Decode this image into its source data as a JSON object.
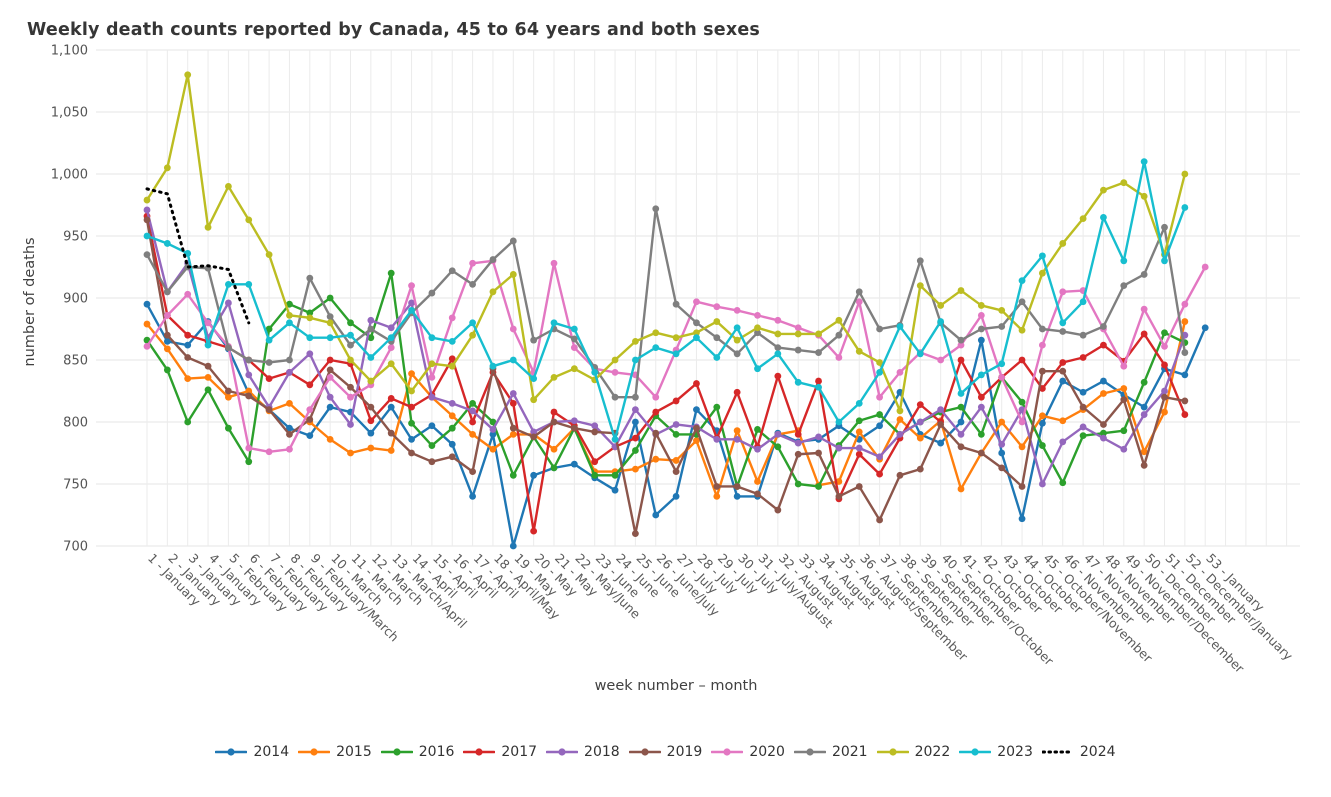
{
  "page": {
    "title": "Weekly death counts reported by Canada, 45 to 64 years and both sexes"
  },
  "chart_data": {
    "type": "line",
    "title": "Weekly death counts reported by Canada, 45 to 64 years and both sexes",
    "xlabel": "week number – month",
    "ylabel": "number of deaths",
    "ylim": [
      700,
      1100
    ],
    "y_ticks": [
      700,
      750,
      800,
      850,
      900,
      950,
      1000,
      1050,
      1100
    ],
    "y_tick_labels": [
      "700",
      "750",
      "800",
      "850",
      "900",
      "950",
      "1,000",
      "1,050",
      "1,100"
    ],
    "grid": true,
    "legend_position": "bottom",
    "categories": [
      "1 - January",
      "2 - January",
      "3 - January",
      "4 - January",
      "5 - February",
      "6 - February",
      "7 - February",
      "8 - February",
      "9 - February/March",
      "10 - March",
      "11 - March",
      "12 - March",
      "13 - March/April",
      "14 - April",
      "15 - April",
      "16 - April",
      "17 - April",
      "18 - April/May",
      "19 - May",
      "20 - May",
      "21 - May",
      "22 - May/June",
      "23 - June",
      "24 - June",
      "25 - June",
      "26 - June/July",
      "27 - July",
      "28 - July",
      "29 - July",
      "30 - July",
      "31 - July/August",
      "32 - August",
      "33 - August",
      "34 - August",
      "35 - August",
      "36 - August/September",
      "37 - September",
      "38 - September",
      "39 - September",
      "40 - September/October",
      "41 - October",
      "42 - October",
      "43 - October",
      "44 - October",
      "45 - October/November",
      "46 - November",
      "47 - November",
      "48 - November",
      "49 - November/December",
      "50 - December",
      "51 - December",
      "52 - December/January",
      "53 - January"
    ],
    "series": [
      {
        "name": "2014",
        "color": "#1f77b4",
        "dash": false,
        "values": [
          895,
          865,
          862,
          881,
          859,
          823,
          810,
          795,
          789,
          812,
          808,
          791,
          812,
          786,
          797,
          782,
          740,
          790,
          700,
          757,
          763,
          766,
          755,
          745,
          800,
          725,
          740,
          810,
          793,
          740,
          740,
          791,
          784,
          786,
          797,
          786,
          797,
          824,
          790,
          783,
          800,
          866,
          775,
          722,
          799,
          833,
          824,
          833,
          822,
          812,
          843,
          838,
          876
        ]
      },
      {
        "name": "2015",
        "color": "#ff7f0e",
        "dash": false,
        "values": [
          879,
          859,
          835,
          836,
          820,
          825,
          809,
          815,
          800,
          786,
          775,
          779,
          777,
          839,
          820,
          805,
          790,
          778,
          790,
          790,
          778,
          795,
          760,
          760,
          762,
          770,
          769,
          785,
          740,
          793,
          752,
          790,
          793,
          749,
          752,
          792,
          770,
          802,
          787,
          801,
          746,
          775,
          800,
          780,
          805,
          801,
          810,
          823,
          827,
          776,
          808,
          881
        ]
      },
      {
        "name": "2016",
        "color": "#2ca02c",
        "dash": false,
        "values": [
          866,
          842,
          800,
          826,
          795,
          768,
          875,
          895,
          888,
          900,
          880,
          868,
          920,
          799,
          781,
          795,
          815,
          800,
          757,
          788,
          763,
          795,
          757,
          757,
          777,
          805,
          790,
          790,
          812,
          748,
          794,
          780,
          750,
          748,
          781,
          801,
          806,
          790,
          800,
          808,
          812,
          790,
          836,
          816,
          781,
          751,
          789,
          791,
          793,
          832,
          872,
          864
        ]
      },
      {
        "name": "2017",
        "color": "#d62728",
        "dash": false,
        "values": [
          966,
          886,
          870,
          865,
          860,
          850,
          835,
          840,
          830,
          850,
          847,
          801,
          819,
          812,
          822,
          851,
          800,
          840,
          815,
          712,
          808,
          797,
          768,
          780,
          787,
          808,
          817,
          831,
          787,
          824,
          780,
          837,
          790,
          833,
          738,
          774,
          758,
          787,
          814,
          800,
          850,
          820,
          836,
          850,
          827,
          848,
          852,
          862,
          849,
          871,
          846,
          806
        ]
      },
      {
        "name": "2018",
        "color": "#9467bd",
        "dash": false,
        "values": [
          971,
          905,
          928,
          868,
          896,
          838,
          812,
          840,
          855,
          820,
          798,
          882,
          876,
          896,
          820,
          815,
          809,
          794,
          823,
          792,
          800,
          801,
          797,
          780,
          810,
          790,
          798,
          796,
          786,
          786,
          778,
          790,
          783,
          788,
          779,
          779,
          772,
          790,
          800,
          810,
          790,
          812,
          782,
          810,
          750,
          784,
          796,
          787,
          778,
          806,
          825,
          870
        ]
      },
      {
        "name": "2019",
        "color": "#8c564b",
        "dash": false,
        "values": [
          963,
          870,
          852,
          845,
          825,
          821,
          810,
          790,
          802,
          842,
          828,
          812,
          791,
          775,
          768,
          772,
          760,
          843,
          795,
          788,
          800,
          795,
          792,
          791,
          710,
          791,
          760,
          795,
          748,
          748,
          742,
          729,
          774,
          775,
          740,
          748,
          721,
          757,
          762,
          798,
          780,
          775,
          763,
          748,
          841,
          841,
          812,
          798,
          818,
          765,
          820,
          817
        ]
      },
      {
        "name": "2020",
        "color": "#e377c2",
        "dash": false,
        "values": [
          861,
          886,
          903,
          880,
          861,
          779,
          776,
          778,
          810,
          836,
          820,
          830,
          860,
          910,
          836,
          884,
          928,
          930,
          875,
          840,
          928,
          860,
          843,
          840,
          838,
          820,
          858,
          897,
          893,
          890,
          886,
          882,
          876,
          870,
          852,
          897,
          820,
          840,
          856,
          850,
          862,
          886,
          836,
          800,
          862,
          905,
          906,
          875,
          845,
          891,
          861,
          895,
          925
        ]
      },
      {
        "name": "2021",
        "color": "#7f7f7f",
        "dash": false,
        "values": [
          935,
          905,
          925,
          924,
          860,
          850,
          848,
          850,
          916,
          885,
          862,
          875,
          865,
          888,
          904,
          922,
          911,
          931,
          946,
          866,
          875,
          867,
          844,
          820,
          820,
          972,
          895,
          880,
          868,
          855,
          872,
          860,
          858,
          856,
          870,
          905,
          875,
          878,
          930,
          880,
          866,
          875,
          877,
          897,
          875,
          873,
          870,
          877,
          910,
          919,
          957,
          856
        ]
      },
      {
        "name": "2022",
        "color": "#bcbd22",
        "dash": false,
        "values": [
          979,
          1005,
          1080,
          957,
          990,
          963,
          935,
          886,
          884,
          880,
          850,
          833,
          847,
          825,
          847,
          845,
          870,
          905,
          919,
          818,
          836,
          843,
          834,
          850,
          865,
          872,
          868,
          872,
          881,
          866,
          876,
          871,
          871,
          871,
          882,
          857,
          848,
          809,
          910,
          894,
          906,
          894,
          890,
          874,
          920,
          944,
          964,
          987,
          993,
          982,
          935,
          1000
        ]
      },
      {
        "name": "2023",
        "color": "#17becf",
        "dash": false,
        "values": [
          950,
          944,
          936,
          862,
          911,
          911,
          866,
          880,
          868,
          868,
          870,
          852,
          868,
          890,
          868,
          865,
          880,
          845,
          850,
          835,
          880,
          875,
          840,
          786,
          850,
          860,
          855,
          868,
          852,
          876,
          843,
          855,
          832,
          828,
          800,
          815,
          840,
          877,
          855,
          881,
          823,
          838,
          847,
          914,
          934,
          880,
          897,
          965,
          930,
          1010,
          930,
          973
        ]
      },
      {
        "name": "2024",
        "color": "#000000",
        "dash": true,
        "values": [
          988,
          984,
          925,
          926,
          923,
          880
        ]
      }
    ]
  }
}
